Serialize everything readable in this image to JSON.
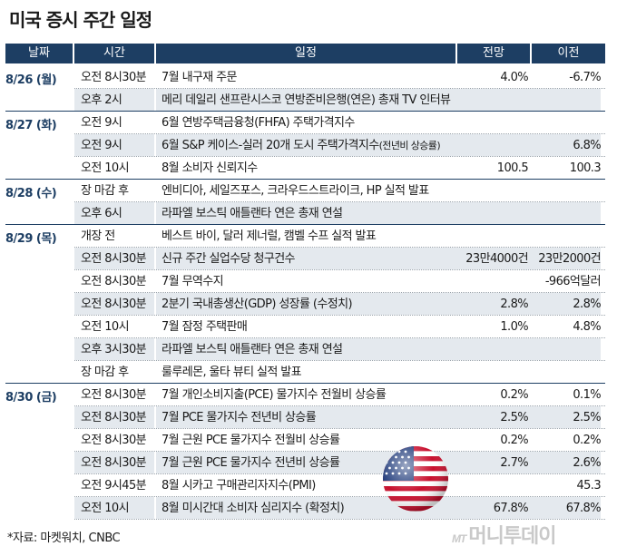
{
  "title": "미국 증시 주간 일정",
  "headers": {
    "date": "날짜",
    "time": "시간",
    "event": "일정",
    "forecast": "전망",
    "previous": "이전"
  },
  "groups": [
    {
      "date": "8/26 (월)",
      "rows": [
        {
          "time": "오전 8시30분",
          "event": "7월 내구재 주문",
          "forecast": "4.0%",
          "previous": "-6.7%"
        },
        {
          "time": "오후 2시",
          "event": "메리 데일리 샌프란시스코 연방준비은행(연은) 총재 TV 인터뷰",
          "forecast": "",
          "previous": ""
        }
      ]
    },
    {
      "date": "8/27 (화)",
      "rows": [
        {
          "time": "오전 9시",
          "event": "6월 연방주택금융청(FHFA) 주택가격지수",
          "forecast": "",
          "previous": ""
        },
        {
          "time": "오전 9시",
          "event": "6월 S&P 케이스-실러 20개 도시 주택가격지수",
          "event_note": "(전년비 상승률)",
          "forecast": "",
          "previous": "6.8%"
        },
        {
          "time": "오전 10시",
          "event": "8월 소비자 신뢰지수",
          "forecast": "100.5",
          "previous": "100.3"
        }
      ]
    },
    {
      "date": "8/28 (수)",
      "rows": [
        {
          "time": "장 마감 후",
          "event": "엔비디아, 세일즈포스, 크라우드스트라이크, HP 실적 발표",
          "forecast": "",
          "previous": ""
        },
        {
          "time": "오후 6시",
          "event": "라파엘 보스틱 애틀랜타 연은 총재 연설",
          "forecast": "",
          "previous": ""
        }
      ]
    },
    {
      "date": "8/29 (목)",
      "rows": [
        {
          "time": "개장 전",
          "event": "베스트 바이, 달러 제너럴, 캠벨 수프 실적 발표",
          "forecast": "",
          "previous": ""
        },
        {
          "time": "오전 8시30분",
          "event": "신규 주간 실업수당 청구건수",
          "forecast": "23만4000건",
          "previous": "23만2000건"
        },
        {
          "time": "오전 8시30분",
          "event": "7월 무역수지",
          "forecast": "",
          "previous": "-966억달러"
        },
        {
          "time": "오전 8시30분",
          "event": "2분기 국내총생산(GDP) 성장률 (수정치)",
          "forecast": "2.8%",
          "previous": "2.8%"
        },
        {
          "time": "오전 10시",
          "event": "7월 잠정 주택판매",
          "forecast": "1.0%",
          "previous": "4.8%"
        },
        {
          "time": "오후 3시30분",
          "event": "라파엘 보스틱 애틀랜타 연은 총재 연설",
          "forecast": "",
          "previous": ""
        },
        {
          "time": "장 마감 후",
          "event": "룰루레몬, 울타 뷰티 실적 발표",
          "forecast": "",
          "previous": ""
        }
      ]
    },
    {
      "date": "8/30 (금)",
      "rows": [
        {
          "time": "오전 8시30분",
          "event": "7월 개인소비지출(PCE) 물가지수 전월비 상승률",
          "forecast": "0.2%",
          "previous": "0.1%"
        },
        {
          "time": "오전 8시30분",
          "event": "7월 PCE 물가지수 전년비 상승률",
          "forecast": "2.5%",
          "previous": "2.5%"
        },
        {
          "time": "오전 8시30분",
          "event": "7월 근원 PCE 물가지수 전월비 상승률",
          "forecast": "0.2%",
          "previous": "0.2%"
        },
        {
          "time": "오전 8시30분",
          "event": "7월 근원 PCE 물가지수 전년비 상승률",
          "forecast": "2.7%",
          "previous": "2.6%"
        },
        {
          "time": "오전 9시45분",
          "event": "8월 시카고 구매관리자지수(PMI)",
          "forecast": "",
          "previous": "45.3"
        },
        {
          "time": "오전 10시",
          "event": "8월 미시간대 소비자 심리지수 (확정치)",
          "forecast": "67.8%",
          "previous": "67.8%"
        }
      ]
    }
  ],
  "footer": "*자료: 마켓워치, CNBC",
  "logo": {
    "prefix": "MT",
    "text": "머니투데이"
  },
  "colors": {
    "header": "#1d3e63",
    "shade": "#e4e9ee",
    "date": "#1d3e63"
  },
  "icons": {
    "flag": "us-flag-icon"
  }
}
